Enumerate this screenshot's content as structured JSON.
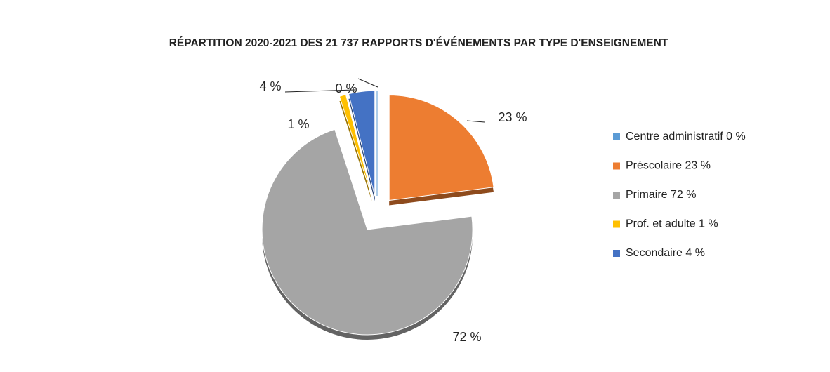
{
  "chart_data": {
    "type": "pie",
    "title": "RÉPARTITION 2020-2021 DES 21 737 RAPPORTS D'ÉVÉNEMENTS PAR TYPE D'ENSEIGNEMENT",
    "categories": [
      "Centre administratif 0 %",
      "Préscolaire 23 %",
      "Primaire 72 %",
      "Prof. et adulte 1 %",
      "Secondaire 4 %"
    ],
    "values": [
      0,
      23,
      72,
      1,
      4
    ],
    "value_labels": [
      "0 %",
      "23 %",
      "72 %",
      "1 %",
      "4 %"
    ],
    "colors": [
      "#5b9bd5",
      "#ed7d31",
      "#a5a5a5",
      "#ffc000",
      "#4472c4"
    ],
    "legend": "right"
  }
}
